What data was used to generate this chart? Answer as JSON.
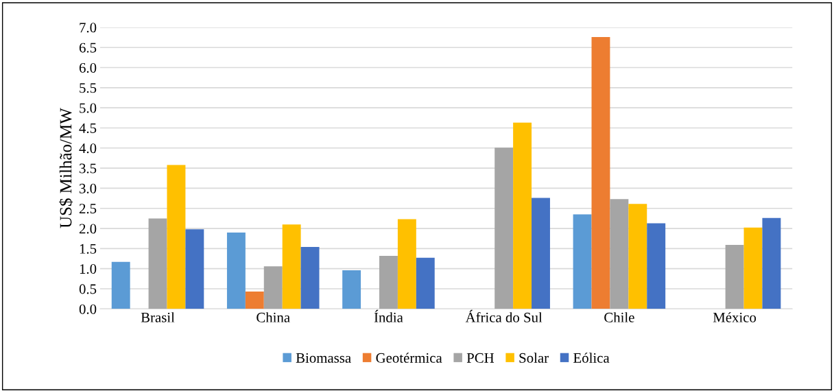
{
  "chart_data": {
    "type": "bar",
    "ylabel": "US$ Milhão/MW",
    "categories": [
      "Brasil",
      "China",
      "Índia",
      "África do Sul",
      "Chile",
      "México"
    ],
    "series": [
      {
        "name": "Biomassa",
        "color": "#5b9bd5",
        "values": [
          1.17,
          1.9,
          0.96,
          null,
          2.35,
          null
        ]
      },
      {
        "name": "Geotérmica",
        "color": "#ed7d31",
        "values": [
          null,
          0.43,
          null,
          null,
          6.76,
          null
        ]
      },
      {
        "name": "PCH",
        "color": "#a5a5a5",
        "values": [
          2.25,
          1.06,
          1.32,
          4.01,
          2.73,
          1.59
        ]
      },
      {
        "name": "Solar",
        "color": "#ffc000",
        "values": [
          3.58,
          2.1,
          2.23,
          4.63,
          2.61,
          2.02
        ]
      },
      {
        "name": "Eólica",
        "color": "#4472c4",
        "values": [
          1.98,
          1.54,
          1.27,
          2.76,
          2.13,
          2.26
        ]
      }
    ],
    "ylim": [
      0.0,
      7.0
    ],
    "yticks": [
      {
        "value": 0,
        "label": "0.0"
      },
      0.5,
      {
        "value": 1,
        "label": "1.0"
      },
      1.5,
      {
        "value": 2,
        "label": "2.0"
      },
      2.5,
      {
        "value": 3,
        "label": "3.0"
      },
      3.5,
      {
        "value": 4,
        "label": "4.0"
      },
      4.5,
      {
        "value": 5,
        "label": "5.0"
      },
      5.5,
      {
        "value": 6,
        "label": "6.0"
      },
      6.5,
      {
        "value": 7,
        "label": "7.0"
      }
    ],
    "grid": "y",
    "legend": "bottom"
  }
}
